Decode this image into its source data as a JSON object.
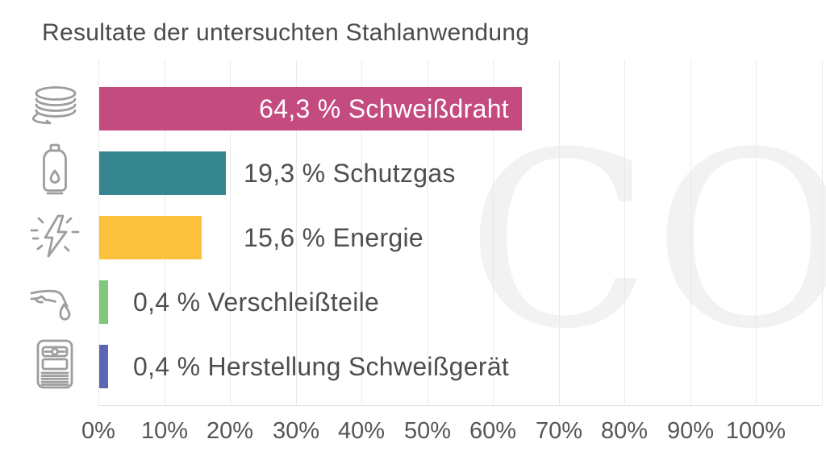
{
  "title": "Resultate der untersuchten Stahlanwendung",
  "watermark": "CO",
  "chart_data": {
    "type": "bar",
    "orientation": "horizontal",
    "title": "Resultate der untersuchten Stahlanwendung",
    "categories": [
      "Schweißdraht",
      "Schutzgas",
      "Energie",
      "Verschleißteile",
      "Herstellung Schweißgerät"
    ],
    "values": [
      64.3,
      19.3,
      15.6,
      0.4,
      0.4
    ],
    "bars": [
      {
        "category": "Schweißdraht",
        "value": 64.3,
        "label": "64,3 % Schweißdraht",
        "color": "#c44b80",
        "icon": "wire-coil-icon",
        "label_placement": "inside"
      },
      {
        "category": "Schutzgas",
        "value": 19.3,
        "label": "19,3 % Schutzgas",
        "color": "#35868e",
        "icon": "gas-cylinder-icon",
        "label_placement": "outside"
      },
      {
        "category": "Energie",
        "value": 15.6,
        "label": "15,6 % Energie",
        "color": "#fcc13c",
        "icon": "energy-bolt-icon",
        "label_placement": "outside"
      },
      {
        "category": "Verschleißteile",
        "value": 0.4,
        "label": "0,4 % Verschleißteile",
        "color": "#80c67b",
        "icon": "welding-torch-icon",
        "label_placement": "outside"
      },
      {
        "category": "Herstellung Schweißgerät",
        "value": 0.4,
        "label": "0,4 % Herstellung Schweißgerät",
        "color": "#5d66b4",
        "icon": "welding-machine-icon",
        "label_placement": "outside"
      }
    ],
    "xlim": [
      0,
      100
    ],
    "x_tick_labels": [
      "0%",
      "10%",
      "20%",
      "30%",
      "40%",
      "50%",
      "60%",
      "70%",
      "80%",
      "90%",
      "100%"
    ],
    "grid": true,
    "legend_position": "none",
    "background_watermark_text": "CO",
    "colors": {
      "text": "#4c4c4e",
      "axis_text": "#565658",
      "gridline": "#e9e9e9",
      "icon": "#9d9d9d",
      "watermark": "#f2f2f2",
      "inside_label": "#ffffff"
    }
  }
}
